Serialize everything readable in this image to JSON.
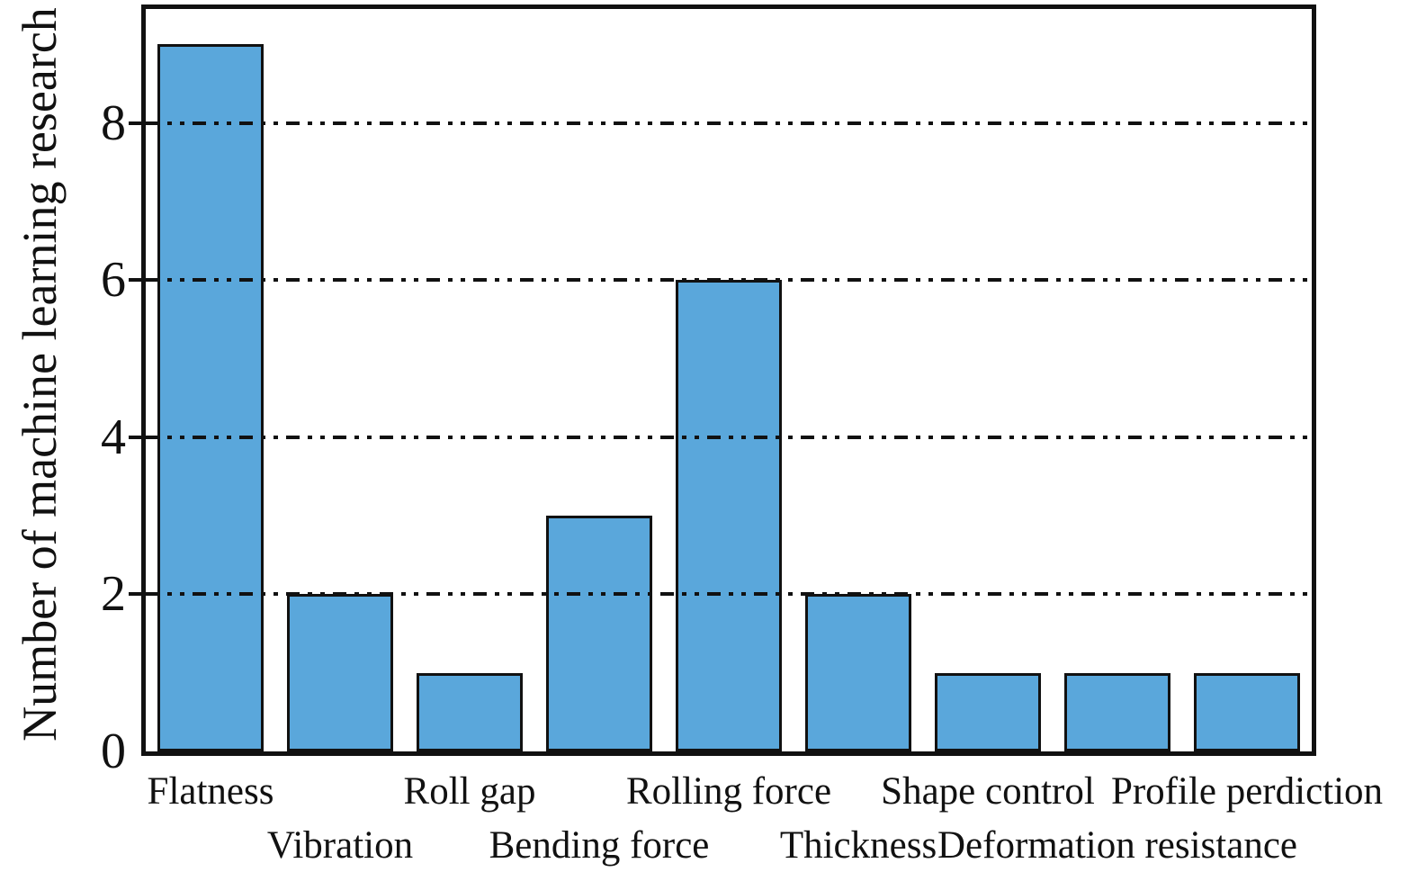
{
  "figure": {
    "background": "#ffffff"
  },
  "chart_data": {
    "type": "bar",
    "categories": [
      "Flatness",
      "Vibration",
      "Roll gap",
      "Bending force",
      "Rolling force",
      "Thickness",
      "Shape control",
      "Deformation resistance",
      "Profile perdiction"
    ],
    "values": [
      9,
      2,
      1,
      3,
      6,
      2,
      1,
      1,
      1
    ],
    "title": "",
    "xlabel": "",
    "ylabel": "Number of machine learning research",
    "yticks": [
      0,
      2,
      4,
      6,
      8
    ],
    "ylim": [
      0,
      9.45
    ],
    "grid_values": [
      2,
      4,
      6,
      8
    ],
    "grid_style": "dash-dot-dot",
    "grid_on": true,
    "legend": "none",
    "x_label_layout": "staggered-two-rows",
    "colors": {
      "bar_fill": "#5AA7DB",
      "bar_edge": "#111111",
      "axis": "#111111",
      "text": "#111111"
    }
  }
}
